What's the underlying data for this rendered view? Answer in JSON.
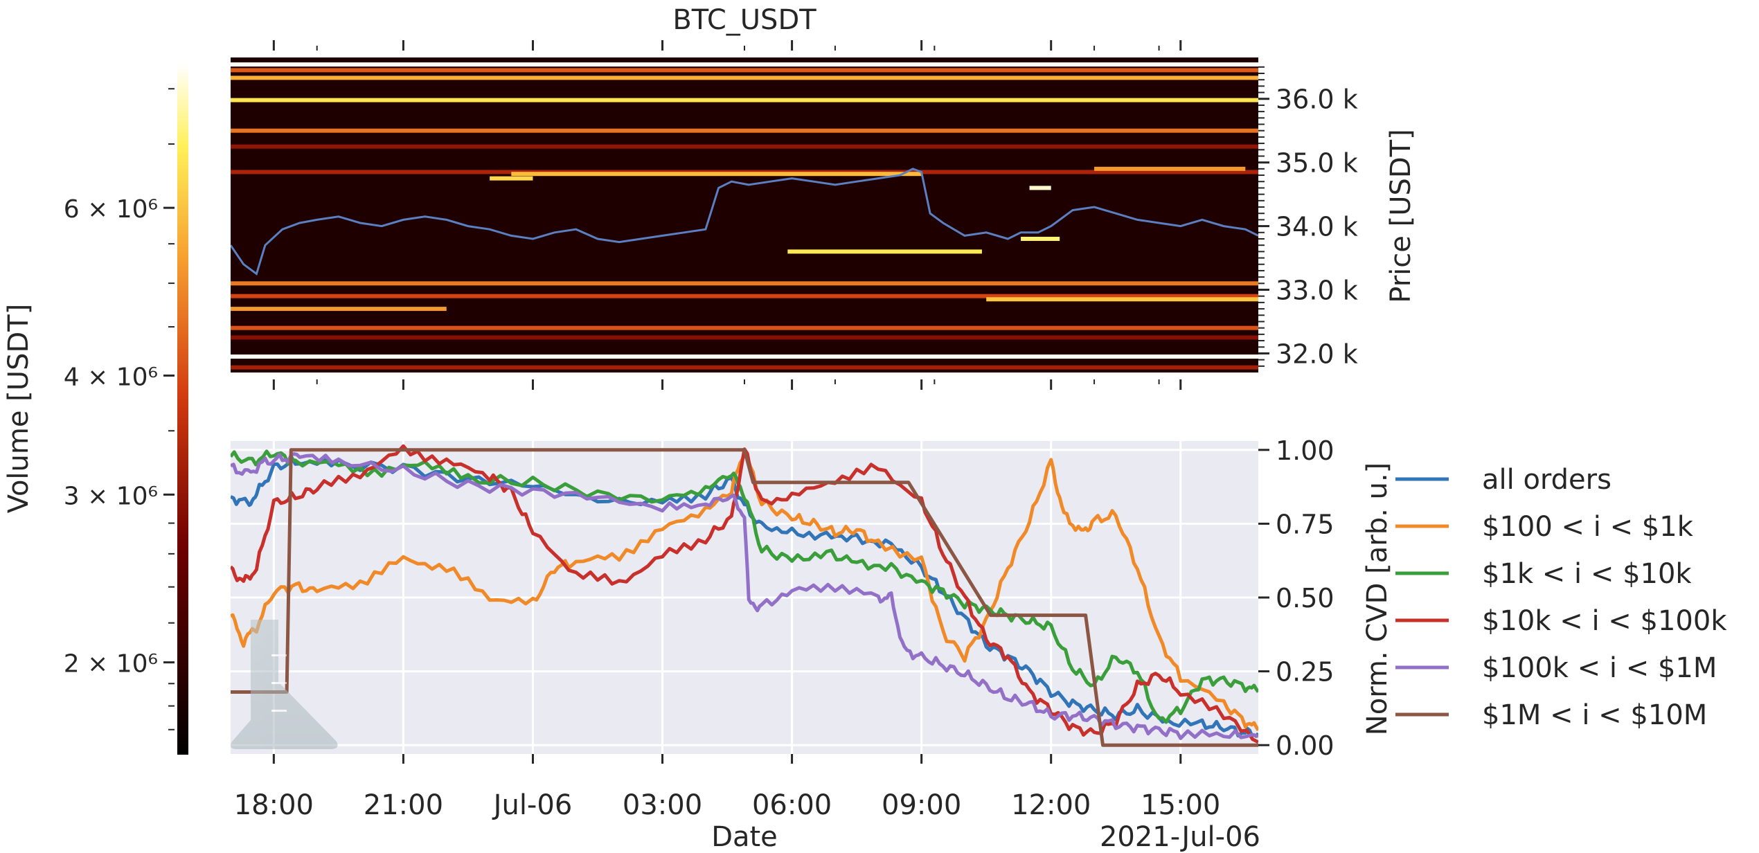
{
  "figure": {
    "title": "BTC_USDT",
    "xlabel": "Date",
    "x_offset_label": "2021-Jul-06",
    "x_ticks": [
      "18:00",
      "21:00",
      "Jul-06",
      "03:00",
      "06:00",
      "09:00",
      "12:00",
      "15:00"
    ],
    "x_tick_hours": [
      18,
      21,
      24,
      27,
      30,
      33,
      36,
      39
    ],
    "x_minor_tick_hours": [
      19,
      28.9,
      31,
      33.3,
      37,
      38.5
    ],
    "xlim_hours": [
      17,
      40.8
    ]
  },
  "colorbar": {
    "label": "Volume [USDT]",
    "scale": "log",
    "colormap": "afmhot",
    "range": [
      1600000,
      8500000
    ],
    "tick_values": [
      2000000,
      3000000,
      4000000,
      6000000
    ],
    "tick_labels": [
      "2 × 10⁶",
      "3 × 10⁶",
      "4 × 10⁶",
      "6 × 10⁶"
    ]
  },
  "chart_data": [
    {
      "type": "heatmap",
      "title": "BTC_USDT",
      "description_axes": "order book volume by price level over time, price line overlaid",
      "ylabel": "Price [USDT]",
      "ylim": [
        31700,
        36650
      ],
      "y_ticks": [
        32000,
        33000,
        34000,
        35000,
        36000
      ],
      "y_tick_labels": [
        "32.0 k",
        "33.0 k",
        "34.0 k",
        "35.0 k",
        "36.0 k"
      ],
      "background_color": "#1f0000",
      "price_line_color": "#5b7fc0",
      "levels": [
        {
          "p": 36540,
          "t0": 17,
          "t1": 40.8,
          "v": 8400000
        },
        {
          "p": 36450,
          "t0": 17,
          "t1": 40.8,
          "v": 4200000
        },
        {
          "p": 36330,
          "t0": 17,
          "t1": 40.8,
          "v": 5600000
        },
        {
          "p": 35980,
          "t0": 17,
          "t1": 40.8,
          "v": 6700000
        },
        {
          "p": 35500,
          "t0": 17,
          "t1": 40.8,
          "v": 4600000
        },
        {
          "p": 35250,
          "t0": 17,
          "t1": 40.8,
          "v": 3000000
        },
        {
          "p": 34850,
          "t0": 17,
          "t1": 40.8,
          "v": 3300000
        },
        {
          "p": 34820,
          "t0": 23.5,
          "t1": 33,
          "v": 5800000
        },
        {
          "p": 34750,
          "t0": 23,
          "t1": 24,
          "v": 6400000
        },
        {
          "p": 34900,
          "t0": 37,
          "t1": 40.5,
          "v": 5200000
        },
        {
          "p": 34600,
          "t0": 35.5,
          "t1": 36,
          "v": 8000000
        },
        {
          "p": 33600,
          "t0": 29.9,
          "t1": 34.4,
          "v": 6800000
        },
        {
          "p": 33800,
          "t0": 35.3,
          "t1": 36.2,
          "v": 7200000
        },
        {
          "p": 33100,
          "t0": 17,
          "t1": 40.8,
          "v": 4700000
        },
        {
          "p": 32900,
          "t0": 17,
          "t1": 40.8,
          "v": 3900000
        },
        {
          "p": 32850,
          "t0": 34.5,
          "t1": 40.8,
          "v": 6000000
        },
        {
          "p": 32700,
          "t0": 17,
          "t1": 22,
          "v": 5200000
        },
        {
          "p": 32400,
          "t0": 17,
          "t1": 40.8,
          "v": 4100000
        },
        {
          "p": 31950,
          "t0": 17,
          "t1": 40.8,
          "v": 8400000
        },
        {
          "p": 32250,
          "t0": 17,
          "t1": 40.8,
          "v": 2900000
        },
        {
          "p": 31780,
          "t0": 17,
          "t1": 40.8,
          "v": 3200000
        }
      ],
      "price_series": {
        "x": [
          17,
          17.3,
          17.6,
          17.8,
          18.2,
          18.6,
          19,
          19.5,
          20,
          20.5,
          21,
          21.5,
          22,
          22.5,
          23,
          23.5,
          24,
          24.5,
          25,
          25.5,
          26,
          26.5,
          27,
          27.5,
          28,
          28.3,
          28.6,
          29,
          29.5,
          30,
          30.5,
          31,
          31.5,
          32,
          32.5,
          32.8,
          33,
          33.2,
          33.5,
          34,
          34.5,
          35,
          35.3,
          35.7,
          36,
          36.5,
          37,
          37.5,
          38,
          38.5,
          39,
          39.5,
          40,
          40.5,
          40.8
        ],
        "y": [
          33700,
          33400,
          33250,
          33700,
          33950,
          34050,
          34100,
          34150,
          34050,
          34000,
          34100,
          34150,
          34100,
          34000,
          33950,
          33850,
          33800,
          33900,
          33950,
          33800,
          33750,
          33800,
          33850,
          33900,
          33950,
          34600,
          34700,
          34650,
          34700,
          34750,
          34700,
          34650,
          34700,
          34750,
          34800,
          34900,
          34850,
          34200,
          34050,
          33850,
          33900,
          33800,
          33900,
          33900,
          34000,
          34250,
          34300,
          34200,
          34100,
          34050,
          34000,
          34100,
          34000,
          33950,
          33850
        ]
      }
    },
    {
      "type": "line",
      "ylabel": "Norm. CVD [arb. u.]",
      "ylim": [
        -0.03,
        1.03
      ],
      "y_ticks": [
        0.0,
        0.25,
        0.5,
        0.75,
        1.0
      ],
      "y_tick_labels": [
        "0.00",
        "0.25",
        "0.50",
        "0.75",
        "1.00"
      ],
      "grid": true,
      "background_color": "#eaeaf2",
      "legend_position": "right",
      "series": [
        {
          "name": "all orders",
          "color": "#3274b8",
          "x": [
            17.0,
            17.4,
            17.6,
            18.0,
            18.5,
            19.5,
            21.0,
            22.5,
            24.0,
            25.5,
            27.0,
            28.0,
            28.6,
            28.9,
            29.3,
            30.0,
            30.8,
            31.5,
            32.3,
            33.0,
            33.5,
            34.0,
            34.5,
            35.0,
            35.5,
            36.0,
            36.5,
            37.0,
            37.5,
            38.0,
            38.7,
            39.5,
            40.0,
            40.5,
            40.8
          ],
          "y": [
            0.84,
            0.82,
            0.85,
            0.94,
            0.96,
            0.95,
            0.94,
            0.9,
            0.88,
            0.83,
            0.82,
            0.85,
            0.9,
            0.81,
            0.74,
            0.72,
            0.71,
            0.7,
            0.68,
            0.6,
            0.52,
            0.43,
            0.34,
            0.3,
            0.25,
            0.18,
            0.14,
            0.12,
            0.1,
            0.12,
            0.08,
            0.07,
            0.06,
            0.04,
            0.04
          ]
        },
        {
          "name": "$100 < i < $1k",
          "color": "#f08a28",
          "x": [
            17.0,
            17.3,
            17.6,
            18.0,
            18.5,
            19.0,
            20.0,
            21.0,
            22.0,
            23.0,
            24.0,
            24.5,
            25.0,
            26.0,
            27.0,
            28.0,
            28.6,
            28.9,
            29.3,
            30.0,
            30.5,
            31.0,
            31.5,
            32.0,
            33.0,
            33.5,
            34.0,
            34.5,
            35.0,
            35.5,
            36.0,
            36.3,
            36.7,
            37.0,
            37.5,
            38.0,
            38.5,
            39.0,
            40.0,
            40.5,
            40.8
          ],
          "y": [
            0.44,
            0.35,
            0.4,
            0.52,
            0.54,
            0.52,
            0.55,
            0.63,
            0.6,
            0.5,
            0.48,
            0.6,
            0.62,
            0.64,
            0.73,
            0.8,
            0.86,
            1.0,
            0.82,
            0.77,
            0.75,
            0.72,
            0.73,
            0.68,
            0.63,
            0.38,
            0.3,
            0.42,
            0.6,
            0.76,
            0.96,
            0.78,
            0.72,
            0.76,
            0.78,
            0.6,
            0.36,
            0.23,
            0.14,
            0.08,
            0.05
          ]
        },
        {
          "name": "$1k < i < $10k",
          "color": "#3a9e3a",
          "x": [
            17.0,
            17.5,
            18.0,
            18.5,
            19.5,
            20.5,
            21.5,
            22.5,
            24.0,
            25.5,
            27.0,
            28.0,
            28.6,
            28.9,
            29.3,
            30.0,
            30.8,
            31.5,
            32.3,
            33.0,
            33.5,
            34.0,
            34.5,
            35.0,
            35.5,
            36.0,
            36.5,
            37.0,
            37.5,
            38.0,
            38.5,
            39.0,
            39.5,
            40.0,
            40.5,
            40.8
          ],
          "y": [
            0.98,
            0.96,
            0.99,
            0.96,
            0.95,
            0.92,
            0.96,
            0.9,
            0.89,
            0.85,
            0.83,
            0.87,
            0.92,
            0.85,
            0.66,
            0.63,
            0.65,
            0.62,
            0.6,
            0.55,
            0.52,
            0.48,
            0.46,
            0.44,
            0.42,
            0.4,
            0.26,
            0.2,
            0.3,
            0.25,
            0.08,
            0.12,
            0.22,
            0.22,
            0.2,
            0.18
          ]
        },
        {
          "name": "$10k < i < $100k",
          "color": "#c8302c",
          "x": [
            17.0,
            17.3,
            17.6,
            18.0,
            18.5,
            19.0,
            20.0,
            21.0,
            22.0,
            23.0,
            23.5,
            24.0,
            25.0,
            26.0,
            27.0,
            28.0,
            28.6,
            28.9,
            29.3,
            30.0,
            31.0,
            32.0,
            33.0,
            33.5,
            34.0,
            34.5,
            35.0,
            35.5,
            36.0,
            36.5,
            37.0,
            37.5,
            38.0,
            38.5,
            39.0,
            40.0,
            40.8
          ],
          "y": [
            0.6,
            0.55,
            0.6,
            0.82,
            0.84,
            0.87,
            0.92,
            1.0,
            0.96,
            0.91,
            0.86,
            0.72,
            0.58,
            0.55,
            0.64,
            0.7,
            0.77,
            1.0,
            0.82,
            0.84,
            0.9,
            0.94,
            0.83,
            0.65,
            0.5,
            0.36,
            0.3,
            0.18,
            0.12,
            0.06,
            0.04,
            0.08,
            0.2,
            0.24,
            0.18,
            0.1,
            0.01
          ]
        },
        {
          "name": "$100k < i < $1M",
          "color": "#9370c8",
          "x": [
            17.0,
            17.4,
            17.8,
            18.2,
            18.6,
            19.5,
            21.0,
            22.5,
            24.0,
            25.5,
            27.0,
            28.0,
            28.6,
            28.9,
            29.0,
            29.3,
            30.0,
            31.0,
            32.0,
            32.3,
            32.6,
            33.0,
            33.5,
            34.0,
            34.5,
            35.0,
            35.5,
            36.0,
            36.5,
            37.0,
            37.5,
            38.0,
            38.5,
            39.0,
            40.0,
            40.8
          ],
          "y": [
            0.94,
            0.92,
            0.96,
            0.97,
            0.98,
            0.96,
            0.93,
            0.88,
            0.86,
            0.84,
            0.8,
            0.82,
            0.84,
            0.78,
            0.48,
            0.47,
            0.52,
            0.54,
            0.5,
            0.5,
            0.32,
            0.3,
            0.27,
            0.24,
            0.2,
            0.16,
            0.14,
            0.1,
            0.1,
            0.09,
            0.07,
            0.06,
            0.05,
            0.04,
            0.03,
            0.03
          ]
        },
        {
          "name": "$1M < i < $10M",
          "color": "#8c5645",
          "x": [
            17.0,
            18.3,
            18.4,
            28.9,
            29.1,
            32.3,
            32.7,
            34.6,
            34.8,
            36.8,
            37.2,
            38.0,
            40.8
          ],
          "y": [
            0.18,
            0.18,
            1.0,
            1.0,
            0.89,
            0.89,
            0.89,
            0.44,
            0.44,
            0.44,
            0.0,
            0.0,
            0.0
          ],
          "step": true
        }
      ]
    }
  ]
}
